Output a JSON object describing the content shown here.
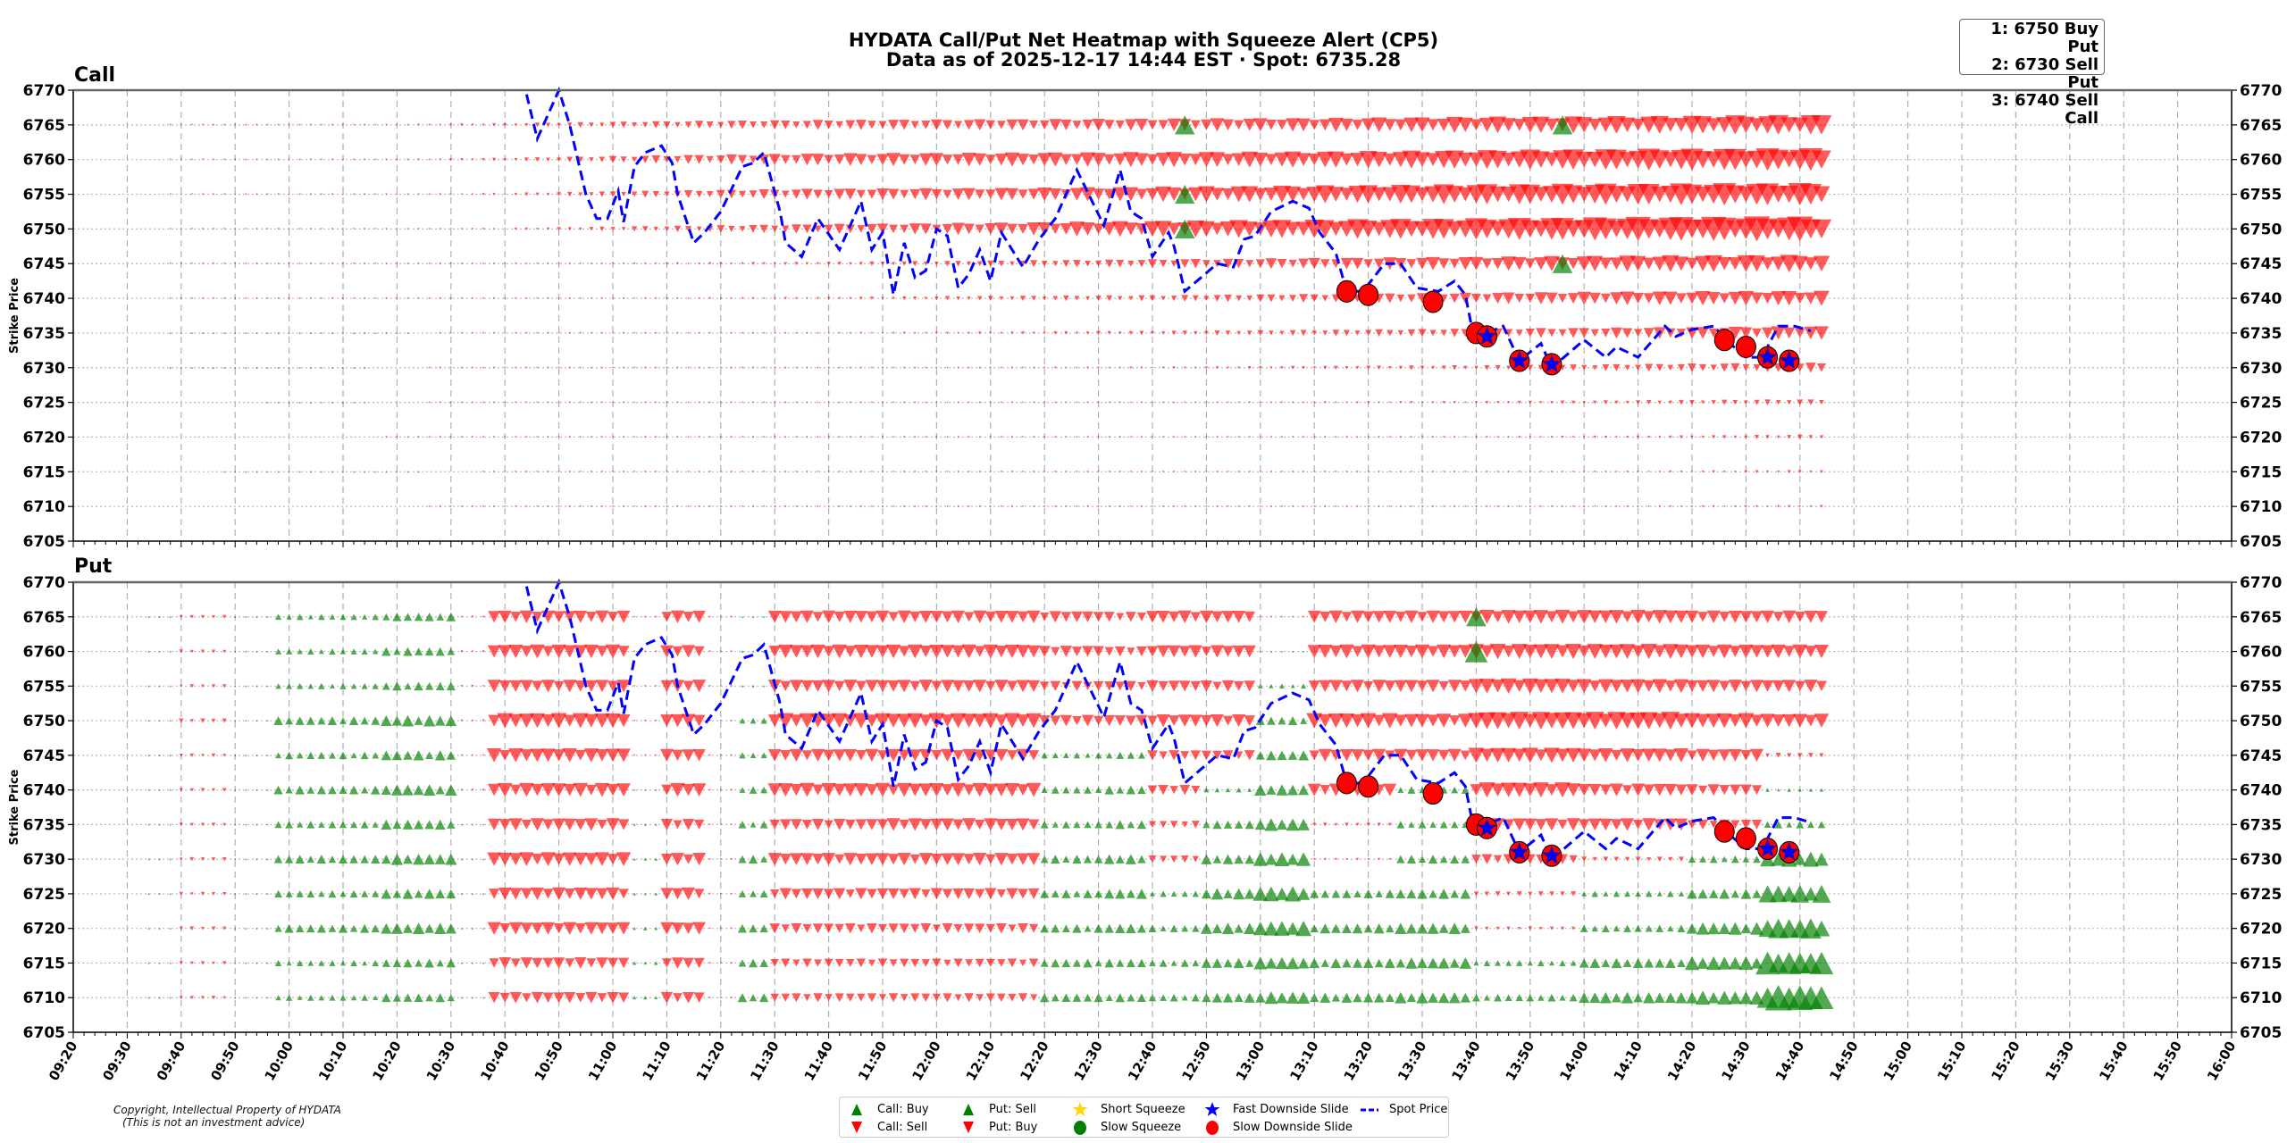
{
  "header": {
    "title": "HYDATA Call/Put Net Heatmap with Squeeze Alert (CP5)",
    "subtitle": "Data as of 2025-12-17 14:44 EST · Spot: 6735.28"
  },
  "alert_box": [
    "1: 6750 Buy Put",
    "2: 6730 Sell Put",
    "3: 6740 Sell Call"
  ],
  "footer": {
    "copyright": "Copyright, Intellectual Property of HYDATA",
    "disclaimer": "(This is not an investment advice)"
  },
  "legend": [
    {
      "label": "Call: Buy",
      "symbol": "triangle-up",
      "color": "#008000"
    },
    {
      "label": "Put: Sell",
      "symbol": "triangle-up",
      "color": "#008000"
    },
    {
      "label": "Short Squeeze",
      "symbol": "star",
      "color": "#ffd700"
    },
    {
      "label": "Fast Downside Slide",
      "symbol": "star",
      "color": "#0000ff"
    },
    {
      "label": "Spot Price",
      "symbol": "dashed-line",
      "color": "#0000ff"
    },
    {
      "label": "Call: Sell",
      "symbol": "triangle-down",
      "color": "#ff0000"
    },
    {
      "label": "Put: Buy",
      "symbol": "triangle-down",
      "color": "#ff0000"
    },
    {
      "label": "Slow Squeeze",
      "symbol": "circle",
      "color": "#008000"
    },
    {
      "label": "Slow Downside Slide",
      "symbol": "circle",
      "color": "#ff0000"
    }
  ],
  "chart_data": {
    "type": "scatter",
    "x_axis": {
      "min": "09:20",
      "max": "16:00",
      "ticks": [
        "09:20",
        "09:30",
        "09:40",
        "09:50",
        "10:00",
        "10:10",
        "10:20",
        "10:30",
        "10:40",
        "10:50",
        "11:00",
        "11:10",
        "11:20",
        "11:30",
        "11:40",
        "11:50",
        "12:00",
        "12:10",
        "12:20",
        "12:30",
        "12:40",
        "12:50",
        "13:00",
        "13:10",
        "13:20",
        "13:30",
        "13:40",
        "13:50",
        "14:00",
        "14:10",
        "14:20",
        "14:30",
        "14:40",
        "14:50",
        "15:00",
        "15:10",
        "15:20",
        "15:30",
        "15:40",
        "15:50",
        "16:00"
      ]
    },
    "y_axis": {
      "label": "Strike Price",
      "min": 6705,
      "max": 6770,
      "ticks": [
        6770,
        6765,
        6760,
        6755,
        6750,
        6745,
        6740,
        6735,
        6730,
        6725,
        6720,
        6715,
        6710,
        6705
      ]
    },
    "grid": true,
    "colors": {
      "buy_up": "#008000",
      "sell_down": "#ff0000",
      "spot": "#0000ff",
      "alert": "#ff0000",
      "fast": "#0000ff"
    },
    "value_note_sign": "positive = green up triangle, negative = red down triangle; magnitude = marker size",
    "strikes": [
      6765,
      6760,
      6755,
      6750,
      6745,
      6740,
      6735,
      6730,
      6725,
      6720,
      6715,
      6710
    ],
    "call": {
      "title": "Call",
      "start": "09:38",
      "end": "14:44",
      "step_min": 2,
      "knot_times": [
        "09:40",
        "10:10",
        "10:40",
        "11:10",
        "11:40",
        "12:10",
        "12:40",
        "13:10",
        "13:40",
        "14:10",
        "14:44"
      ],
      "net": [
        [
          -0.3,
          -0.4,
          -1.5,
          -3,
          -4,
          -4.5,
          -5,
          -5.5,
          -6.5,
          -7,
          -8
        ],
        [
          -0.3,
          -0.4,
          -1.5,
          -3.5,
          -5,
          -5.5,
          -6,
          -6.5,
          -7.5,
          -8.5,
          -9
        ],
        [
          -0.2,
          -0.3,
          -1.2,
          -3,
          -4.5,
          -5,
          -6,
          -7,
          -8,
          -8.5,
          -9
        ],
        [
          -0.2,
          -0.3,
          -1,
          -2.5,
          -4,
          -5,
          -6.5,
          -7.5,
          -8.5,
          -9.5,
          -10
        ],
        [
          -0.1,
          -0.2,
          -0.5,
          -1,
          -1.5,
          -2.5,
          -3.5,
          -4.5,
          -5.5,
          -6.5,
          -7
        ],
        [
          -0.1,
          -0.2,
          -0.4,
          -0.8,
          -1.2,
          -2,
          -2.5,
          -3.5,
          -4.5,
          -5.5,
          -6
        ],
        [
          0.2,
          0.3,
          -0.3,
          -0.5,
          -0.8,
          -1.2,
          -1.8,
          -2.5,
          -3.5,
          -4.5,
          -5.5
        ],
        [
          0.1,
          0.1,
          -0.2,
          -0.4,
          -0.6,
          -0.8,
          -1,
          -1.5,
          -2,
          -3,
          -4
        ],
        [
          0,
          0.1,
          -0.2,
          -0.3,
          -0.5,
          -0.6,
          -0.7,
          -0.9,
          -1.2,
          -1.8,
          -2.5
        ],
        [
          0,
          0,
          -0.2,
          -0.3,
          -0.4,
          -0.5,
          -0.6,
          -0.7,
          -0.9,
          -1.2,
          -2
        ],
        [
          0,
          0.2,
          -0.1,
          -0.2,
          -0.3,
          -0.4,
          -0.5,
          -0.6,
          -0.7,
          -0.9,
          -1.5
        ],
        [
          0,
          0,
          -0.1,
          -0.2,
          -0.3,
          -0.4,
          -0.5,
          -0.6,
          -0.7,
          -0.8,
          -1.2
        ]
      ],
      "large_markers": [
        {
          "time": "12:46",
          "strike": 6765,
          "value": 7
        },
        {
          "time": "12:46",
          "strike": 6755,
          "value": 7
        },
        {
          "time": "12:46",
          "strike": 6750,
          "value": 7
        },
        {
          "time": "13:56",
          "strike": 6765,
          "value": 7
        },
        {
          "time": "13:56",
          "strike": 6745,
          "value": 7
        }
      ]
    },
    "put": {
      "title": "Put",
      "step_min": 2,
      "bands": [
        {
          "from": "09:34",
          "to": "09:40",
          "net": [
            0.4,
            0.4,
            0.4,
            0.4,
            0.4,
            0.4,
            0.4,
            0.4,
            0.4,
            0.4,
            0.4,
            0.4
          ]
        },
        {
          "from": "09:40",
          "to": "09:50",
          "net": [
            -1.5,
            -1.5,
            -1.5,
            -1.8,
            -1.5,
            -1.6,
            -1.5,
            -1.6,
            -1.5,
            -1.6,
            -1.5,
            -1.5
          ]
        },
        {
          "from": "09:50",
          "to": "09:58",
          "net": [
            0.4,
            0.4,
            0.4,
            0.4,
            0.4,
            0.4,
            0.4,
            0.4,
            0.4,
            0.4,
            0.4,
            0.4
          ]
        },
        {
          "from": "09:58",
          "to": "10:18",
          "net": [
            2.5,
            2.5,
            2.5,
            3.5,
            3,
            3.5,
            3,
            3.5,
            3,
            3.5,
            2.5,
            2.5
          ]
        },
        {
          "from": "10:18",
          "to": "10:32",
          "net": [
            3.5,
            3.5,
            3.5,
            4.5,
            4,
            4.5,
            4,
            4.5,
            4,
            4.5,
            3.5,
            3.5
          ]
        },
        {
          "from": "10:32",
          "to": "10:38",
          "net": [
            -1,
            -1,
            -1,
            -1,
            -0.8,
            -1,
            0.5,
            0.5,
            0.8,
            0.8,
            0.6,
            0.6
          ]
        },
        {
          "from": "10:38",
          "to": "11:04",
          "net": [
            -5,
            -5.5,
            -5,
            -6,
            -5.5,
            -5.5,
            -5,
            -5.5,
            -5,
            -5,
            -4.5,
            -4.5
          ]
        },
        {
          "from": "11:04",
          "to": "11:10",
          "net": [
            -0.5,
            -0.5,
            -0.5,
            -0.5,
            -0.5,
            0.8,
            1,
            1.2,
            1.2,
            1.5,
            1.5,
            1.5
          ]
        },
        {
          "from": "11:10",
          "to": "11:18",
          "net": [
            -5,
            -5,
            -5,
            -5.5,
            -5,
            -5.5,
            -4.5,
            -5,
            -5,
            -5,
            -4.5,
            -4.5
          ]
        },
        {
          "from": "11:18",
          "to": "11:24",
          "net": [
            -0.8,
            -0.8,
            -0.6,
            -0.6,
            -0.6,
            -0.8,
            -0.6,
            -0.8,
            -0.8,
            -0.8,
            -0.8,
            -0.8
          ]
        },
        {
          "from": "11:24",
          "to": "11:30",
          "net": [
            0.6,
            1,
            1,
            2.5,
            2.5,
            3,
            3,
            3.5,
            3,
            3.5,
            3.5,
            3.5
          ]
        },
        {
          "from": "11:30",
          "to": "11:50",
          "net": [
            -5,
            -5.5,
            -5,
            -6,
            -5,
            -5.5,
            -4.5,
            -5,
            -4.5,
            -4,
            -3.5,
            -3.5
          ]
        },
        {
          "from": "11:50",
          "to": "12:20",
          "net": [
            -5,
            -5.5,
            -5,
            -6,
            -5,
            -5.5,
            -5,
            -5,
            -4.5,
            -4,
            -3.5,
            -3.5
          ]
        },
        {
          "from": "12:20",
          "to": "12:32",
          "net": [
            -4.5,
            -4.5,
            -4,
            -4.5,
            2.5,
            3,
            3,
            3.5,
            3.5,
            3.5,
            3.5,
            3.5
          ]
        },
        {
          "from": "12:32",
          "to": "12:40",
          "net": [
            -4,
            -4,
            -4,
            -4.5,
            3,
            3.5,
            3.5,
            4,
            4,
            4,
            3.5,
            3.5
          ]
        },
        {
          "from": "12:40",
          "to": "12:50",
          "net": [
            -5,
            -5,
            -4.5,
            -5,
            -4,
            -4,
            -3,
            -3,
            2.5,
            3,
            3,
            3
          ]
        },
        {
          "from": "12:50",
          "to": "13:00",
          "net": [
            -5,
            -5,
            -4.5,
            -5,
            -4,
            2,
            3.5,
            4,
            4.5,
            4.5,
            4,
            4
          ]
        },
        {
          "from": "13:00",
          "to": "13:10",
          "net": [
            -0.5,
            0.8,
            2,
            3.5,
            4,
            4.5,
            5,
            5.5,
            6,
            6,
            5,
            5
          ]
        },
        {
          "from": "13:10",
          "to": "13:26",
          "net": [
            -5,
            -5.5,
            -5,
            -6,
            -5,
            -5,
            -1.5,
            -1,
            3.5,
            4,
            4,
            4
          ]
        },
        {
          "from": "13:26",
          "to": "13:40",
          "net": [
            -5,
            -5.5,
            -5,
            -5.5,
            -5,
            3,
            3,
            3.5,
            4,
            4.5,
            4.5,
            4.5
          ]
        },
        {
          "from": "13:40",
          "to": "14:00",
          "net": [
            -5.5,
            -6,
            -6,
            -7,
            -6,
            -6,
            -5,
            -4,
            -2,
            -1.5,
            2.5,
            3
          ]
        },
        {
          "from": "14:00",
          "to": "14:20",
          "net": [
            -5.5,
            -6,
            -5.5,
            -7,
            -5.5,
            -5,
            -5,
            -2,
            2.5,
            3,
            4,
            4.5
          ]
        },
        {
          "from": "14:20",
          "to": "14:34",
          "net": [
            -5,
            -5.5,
            -5,
            -6,
            -5,
            -4.5,
            -4,
            3,
            4,
            5,
            5.5,
            5.5
          ]
        },
        {
          "from": "14:34",
          "to": "14:46",
          "net": [
            -5,
            -5.5,
            -5,
            -5.5,
            -2,
            1.5,
            3,
            6,
            7,
            8,
            9,
            10
          ]
        }
      ],
      "large_markers": [
        {
          "time": "13:40",
          "strike": 6765,
          "value": 7
        },
        {
          "time": "13:40",
          "strike": 6760,
          "value": 8
        }
      ]
    },
    "spot_price": {
      "times": [
        "10:44",
        "10:46",
        "10:50",
        "10:52",
        "10:55",
        "10:57",
        "10:59",
        "11:01",
        "11:02",
        "11:04",
        "11:06",
        "11:09",
        "11:11",
        "11:12",
        "11:15",
        "11:17",
        "11:20",
        "11:24",
        "11:26",
        "11:28",
        "11:31",
        "11:32",
        "11:35",
        "11:38",
        "11:42",
        "11:46",
        "11:48",
        "11:50",
        "11:52",
        "11:54",
        "11:56",
        "11:58",
        "12:00",
        "12:02",
        "12:04",
        "12:06",
        "12:08",
        "12:10",
        "12:12",
        "12:16",
        "12:19",
        "12:22",
        "12:26",
        "12:31",
        "12:34",
        "12:36",
        "12:38",
        "12:40",
        "12:43",
        "12:44",
        "12:46",
        "12:49",
        "12:52",
        "12:55",
        "12:57",
        "12:59",
        "13:02",
        "13:06",
        "13:09",
        "13:11",
        "13:14",
        "13:16",
        "13:19",
        "13:23",
        "13:26",
        "13:29",
        "13:33",
        "13:36",
        "13:38",
        "13:39",
        "13:42",
        "13:45",
        "13:48",
        "13:52",
        "13:54",
        "14:00",
        "14:04",
        "14:06",
        "14:10",
        "14:15",
        "14:17",
        "14:20",
        "14:24",
        "14:27",
        "14:30",
        "14:33",
        "14:36",
        "14:39",
        "14:42"
      ],
      "values": [
        6769.4,
        6763,
        6770,
        6765,
        6755,
        6751.5,
        6751.5,
        6755.5,
        6751,
        6759,
        6761,
        6762,
        6759.5,
        6755,
        6748,
        6749.5,
        6752.5,
        6759,
        6759.5,
        6761,
        6752.5,
        6748,
        6746,
        6751.5,
        6747,
        6754,
        6747,
        6749.5,
        6740.5,
        6748,
        6743,
        6744,
        6750,
        6749,
        6741.5,
        6743.5,
        6747,
        6742.5,
        6749.5,
        6744.5,
        6748.5,
        6751.5,
        6758.5,
        6750.5,
        6758.5,
        6752.5,
        6751.5,
        6746,
        6749.5,
        6747.5,
        6741,
        6743,
        6745,
        6744.5,
        6748.5,
        6749,
        6752.5,
        6754,
        6753,
        6749.5,
        6746.5,
        6741,
        6741,
        6745,
        6745,
        6741.5,
        6741,
        6742.5,
        6740.5,
        6736.5,
        6735,
        6736,
        6731,
        6733.5,
        6730,
        6734,
        6731.5,
        6733,
        6731.5,
        6736,
        6734.5,
        6735.5,
        6736,
        6733.5,
        6731.5,
        6731.5,
        6736,
        6736,
        6735.3
      ]
    },
    "alerts": [
      {
        "time": "13:16",
        "price": 6741,
        "type": "Slow Downside Slide"
      },
      {
        "time": "13:20",
        "price": 6740.5,
        "type": "Slow Downside Slide"
      },
      {
        "time": "13:32",
        "price": 6739.5,
        "type": "Slow Downside Slide"
      },
      {
        "time": "13:40",
        "price": 6735,
        "type": "Slow Downside Slide"
      },
      {
        "time": "13:42",
        "price": 6734.5,
        "type": "Fast Downside Slide"
      },
      {
        "time": "13:48",
        "price": 6731,
        "type": "Fast Downside Slide"
      },
      {
        "time": "13:54",
        "price": 6730.5,
        "type": "Fast Downside Slide"
      },
      {
        "time": "14:26",
        "price": 6734,
        "type": "Slow Downside Slide"
      },
      {
        "time": "14:30",
        "price": 6733,
        "type": "Slow Downside Slide"
      },
      {
        "time": "14:34",
        "price": 6731.5,
        "type": "Fast Downside Slide"
      },
      {
        "time": "14:38",
        "price": 6731,
        "type": "Fast Downside Slide"
      }
    ]
  }
}
